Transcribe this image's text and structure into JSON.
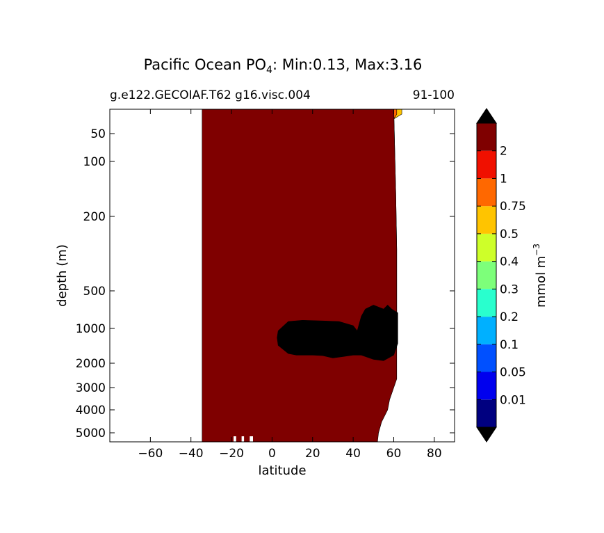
{
  "chart_data": {
    "type": "contourf",
    "title": {
      "prefix": "Pacific Ocean PO",
      "subscript": "4",
      "suffix": ": Min:0.13, Max:3.16"
    },
    "subtitle_left": "g.e122.GECOIAF.T62 g16.visc.004",
    "subtitle_right": "91-100",
    "xlabel": "latitude",
    "ylabel": "depth (m)",
    "xlim": [
      -80,
      90
    ],
    "x_ticks": [
      -60,
      -40,
      -20,
      0,
      20,
      40,
      60,
      80
    ],
    "x_tick_labels": [
      "−60",
      "−40",
      "−20",
      "0",
      "20",
      "40",
      "60",
      "80"
    ],
    "y_ticks": [
      50,
      100,
      200,
      500,
      1000,
      2000,
      3000,
      4000,
      5000
    ],
    "y_tick_labels": [
      "50",
      "100",
      "200",
      "500",
      "1000",
      "2000",
      "3000",
      "4000",
      "5000"
    ],
    "colorbar": {
      "label": "mmol m",
      "label_exp": "−3",
      "levels": [
        0.01,
        0.05,
        0.1,
        0.2,
        0.3,
        0.4,
        0.5,
        0.75,
        1,
        2
      ],
      "level_labels": [
        "0.01",
        "0.05",
        "0.1",
        "0.2",
        "0.3",
        "0.4",
        "0.5",
        "0.75",
        "1",
        "2"
      ],
      "colors": [
        "#000080",
        "#0000ee",
        "#0050ff",
        "#00b0ff",
        "#29ffce",
        "#7dff7a",
        "#ceff29",
        "#ffc400",
        "#ff6800",
        "#f01000",
        "#7f0000"
      ],
      "extend_color": "#000000"
    },
    "regions": [
      {
        "class": 10,
        "color": "#7f0000",
        "description_level": "> 2",
        "points": [
          [
            -34.5,
            800
          ],
          [
            -34.5,
            5700
          ],
          [
            52,
            5700
          ],
          [
            52.5,
            5000
          ],
          [
            54,
            4500
          ],
          [
            57,
            4000
          ],
          [
            58,
            3500
          ],
          [
            60,
            3000
          ],
          [
            61.5,
            2600
          ],
          [
            61.5,
            300
          ],
          [
            61,
            150
          ],
          [
            60,
            0
          ],
          [
            58,
            0
          ],
          [
            54,
            0
          ],
          [
            52,
            0
          ],
          [
            -34.5,
            0
          ]
        ]
      },
      {
        "class": 9,
        "color": "#f01000",
        "points": [
          [
            -34.5,
            0
          ],
          [
            52,
            0
          ],
          [
            54,
            0
          ],
          [
            58,
            0
          ],
          [
            60,
            0
          ],
          [
            61,
            150
          ],
          [
            61.5,
            300
          ],
          [
            61.5,
            800
          ],
          [
            57,
            140
          ],
          [
            54,
            130
          ],
          [
            50,
            150
          ],
          [
            45,
            300
          ],
          [
            43,
            400
          ],
          [
            35,
            450
          ],
          [
            25,
            470
          ],
          [
            18,
            420
          ],
          [
            12,
            300
          ],
          [
            8,
            250
          ],
          [
            5,
            280
          ],
          [
            2,
            320
          ],
          [
            -2,
            330
          ],
          [
            -10,
            400
          ],
          [
            -20,
            550
          ],
          [
            -28,
            700
          ],
          [
            -34.5,
            800
          ]
        ]
      },
      {
        "class": 8,
        "color": "#ff6800",
        "points": [
          [
            -34.5,
            0
          ],
          [
            52,
            0
          ],
          [
            56,
            0
          ],
          [
            61,
            0
          ],
          [
            61.5,
            0
          ],
          [
            61.5,
            10
          ],
          [
            60,
            20
          ],
          [
            55,
            40
          ],
          [
            50,
            60
          ],
          [
            45,
            110
          ],
          [
            40,
            170
          ],
          [
            35,
            200
          ],
          [
            28,
            210
          ],
          [
            20,
            200
          ],
          [
            15,
            150
          ],
          [
            10,
            90
          ],
          [
            7,
            70
          ],
          [
            3,
            60
          ],
          [
            -2,
            65
          ],
          [
            -8,
            85
          ],
          [
            -15,
            130
          ],
          [
            -20,
            170
          ],
          [
            -25,
            200
          ],
          [
            -30,
            250
          ],
          [
            -34.5,
            200
          ]
        ]
      },
      {
        "class": 7,
        "color": "#ffc400",
        "points": [
          [
            -34.5,
            0
          ],
          [
            50,
            0
          ],
          [
            62,
            0
          ],
          [
            64,
            0
          ],
          [
            64,
            10
          ],
          [
            60,
            20
          ],
          [
            54,
            30
          ],
          [
            48,
            50
          ],
          [
            43,
            80
          ],
          [
            38,
            130
          ],
          [
            32,
            160
          ],
          [
            25,
            165
          ],
          [
            20,
            160
          ],
          [
            15,
            110
          ],
          [
            10,
            70
          ],
          [
            5,
            50
          ],
          [
            -2,
            45
          ],
          [
            -10,
            52
          ],
          [
            -20,
            75
          ],
          [
            -28,
            100
          ],
          [
            -34.5,
            120
          ]
        ]
      },
      {
        "class": 6,
        "color": "#ceff29",
        "points": [
          [
            -34.5,
            0
          ],
          [
            42,
            0
          ],
          [
            43,
            10
          ],
          [
            40,
            25
          ],
          [
            37,
            45
          ],
          [
            34,
            70
          ],
          [
            30,
            95
          ],
          [
            25,
            100
          ],
          [
            20,
            95
          ],
          [
            16,
            75
          ],
          [
            14,
            55
          ],
          [
            12,
            30
          ],
          [
            10,
            10
          ],
          [
            8,
            0
          ],
          [
            5,
            0
          ],
          [
            1,
            20
          ],
          [
            -5,
            25
          ],
          [
            -15,
            32
          ],
          [
            -25,
            50
          ],
          [
            -34.5,
            80
          ]
        ]
      },
      {
        "class": 5,
        "color": "#7dff7a",
        "points": [
          [
            -34.5,
            0
          ],
          [
            -5,
            0
          ],
          [
            -6,
            10
          ],
          [
            -12,
            15
          ],
          [
            -20,
            25
          ],
          [
            -28,
            40
          ],
          [
            -34.5,
            60
          ]
        ]
      },
      {
        "class": 5,
        "color": "#7dff7a",
        "points": [
          [
            13,
            0
          ],
          [
            41,
            0
          ],
          [
            40,
            10
          ],
          [
            37,
            25
          ],
          [
            35,
            45
          ],
          [
            32,
            60
          ],
          [
            28,
            80
          ],
          [
            23,
            82
          ],
          [
            19,
            70
          ],
          [
            17,
            50
          ],
          [
            15,
            30
          ],
          [
            14,
            10
          ]
        ]
      },
      {
        "class": 4,
        "color": "#29ffce",
        "points": [
          [
            -34.5,
            0
          ],
          [
            -15,
            0
          ],
          [
            -17,
            15
          ],
          [
            -20,
            25
          ],
          [
            -25,
            38
          ],
          [
            -30,
            50
          ],
          [
            -34.5,
            50
          ]
        ]
      },
      {
        "class": 4,
        "color": "#29ffce",
        "points": [
          [
            15,
            0
          ],
          [
            38,
            0
          ],
          [
            36,
            15
          ],
          [
            34,
            30
          ],
          [
            31,
            45
          ],
          [
            28,
            55
          ],
          [
            24,
            58
          ],
          [
            20,
            50
          ],
          [
            18,
            35
          ],
          [
            17,
            20
          ],
          [
            16,
            5
          ]
        ]
      },
      {
        "class": 3,
        "color": "#00b0ff",
        "points": [
          [
            18,
            0
          ],
          [
            33,
            0
          ],
          [
            32,
            10
          ],
          [
            30,
            25
          ],
          [
            28,
            35
          ],
          [
            25,
            40
          ],
          [
            22,
            38
          ],
          [
            20,
            28
          ],
          [
            19,
            15
          ]
        ]
      },
      {
        "class": 11,
        "color": "#000000",
        "points": [
          [
            3,
            1050
          ],
          [
            8,
            880
          ],
          [
            15,
            860
          ],
          [
            25,
            870
          ],
          [
            33,
            880
          ],
          [
            40,
            950
          ],
          [
            42,
            1050
          ],
          [
            44,
            800
          ],
          [
            46,
            700
          ],
          [
            50,
            650
          ],
          [
            55,
            700
          ],
          [
            57,
            650
          ],
          [
            59,
            700
          ],
          [
            62,
            750
          ],
          [
            62,
            1350
          ],
          [
            60,
            1700
          ],
          [
            55,
            1900
          ],
          [
            50,
            1850
          ],
          [
            44,
            1700
          ],
          [
            40,
            1700
          ],
          [
            35,
            1750
          ],
          [
            30,
            1800
          ],
          [
            25,
            1720
          ],
          [
            20,
            1700
          ],
          [
            12,
            1700
          ],
          [
            8,
            1650
          ],
          [
            3,
            1400
          ],
          [
            2.5,
            1200
          ]
        ]
      }
    ]
  }
}
